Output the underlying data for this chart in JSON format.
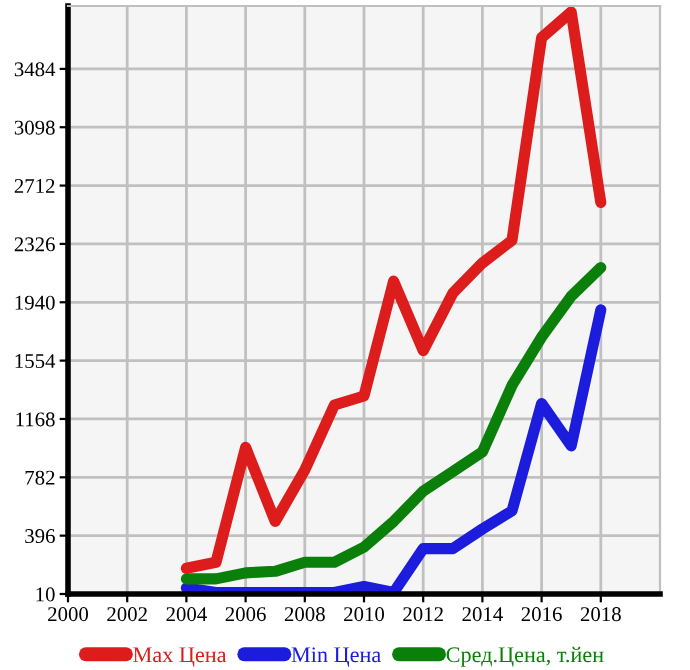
{
  "chart_data": {
    "type": "line",
    "x": [
      2004,
      2005,
      2006,
      2007,
      2008,
      2009,
      2010,
      2011,
      2012,
      2013,
      2014,
      2015,
      2016,
      2017,
      2018
    ],
    "series": [
      {
        "name": "Max Цена",
        "color": "#dd1c1c",
        "values": [
          180,
          220,
          980,
          490,
          830,
          1260,
          1320,
          2080,
          1620,
          2000,
          2200,
          2350,
          3690,
          3860,
          2600
        ]
      },
      {
        "name": "Min Цена",
        "color": "#1c1cdd",
        "values": [
          50,
          20,
          20,
          20,
          20,
          20,
          60,
          20,
          310,
          310,
          440,
          560,
          1270,
          990,
          1890
        ]
      },
      {
        "name": "Сред.Цена, т.йен",
        "color": "#0a800a",
        "values": [
          110,
          110,
          150,
          160,
          220,
          220,
          320,
          490,
          690,
          820,
          950,
          1390,
          1710,
          1980,
          2170
        ]
      }
    ],
    "xlim": [
      2000,
      2020
    ],
    "xticks": [
      2000,
      2002,
      2004,
      2006,
      2008,
      2010,
      2012,
      2014,
      2016,
      2018
    ],
    "ylim": [
      10,
      3900
    ],
    "yticks": [
      10,
      396,
      782,
      1168,
      1554,
      1940,
      2326,
      2712,
      3098,
      3484
    ],
    "grid": true,
    "legend": "bottom",
    "marker": "none",
    "line_style": "solid"
  }
}
